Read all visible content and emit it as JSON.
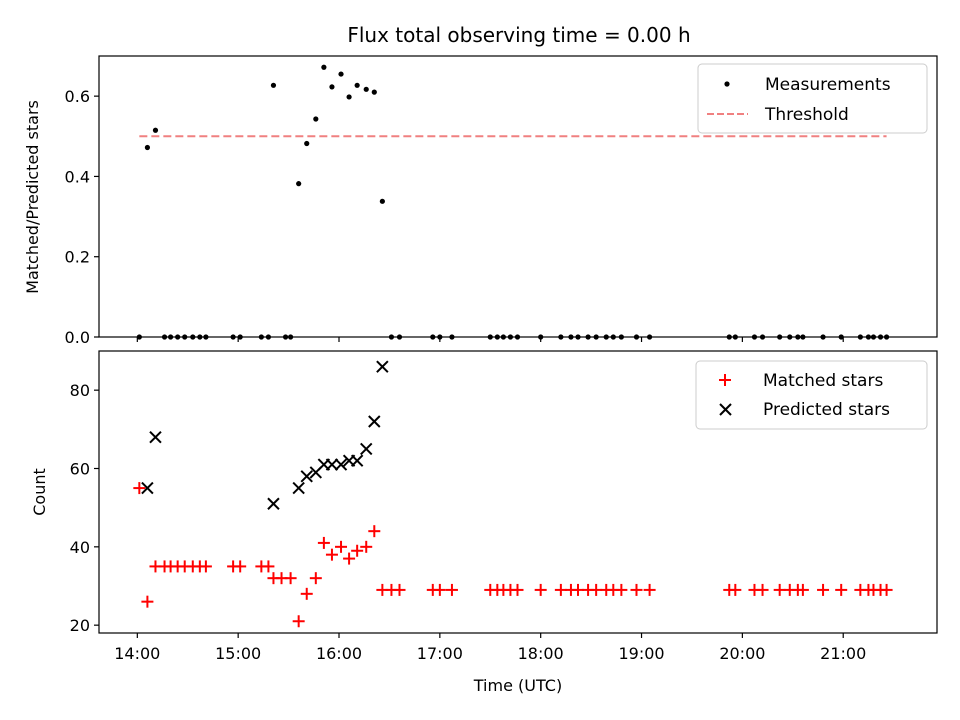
{
  "chart_data": [
    {
      "type": "scatter",
      "title": "Flux total observing time = 0.00 h",
      "xlabel": "",
      "ylabel": "Matched/Predicted stars",
      "xlim": [
        13.62,
        21.93
      ],
      "ylim": [
        0.0,
        0.7
      ],
      "yticks": [
        0.0,
        0.2,
        0.4,
        0.6
      ],
      "ytick_labels": [
        "0.0",
        "0.2",
        "0.4",
        "0.6"
      ],
      "legend": {
        "position": "top-right",
        "entries": [
          "Measurements",
          "Threshold"
        ]
      },
      "series": [
        {
          "name": "Measurements",
          "color": "#000000",
          "marker": "dot",
          "x": [
            14.02,
            14.1,
            14.18,
            14.27,
            14.33,
            14.4,
            14.47,
            14.55,
            14.62,
            14.68,
            14.95,
            15.02,
            15.23,
            15.3,
            15.35,
            15.47,
            15.52,
            15.6,
            15.68,
            15.77,
            15.85,
            15.93,
            16.02,
            16.1,
            16.18,
            16.27,
            16.35,
            16.43,
            16.52,
            16.6,
            16.93,
            17.0,
            17.12,
            17.5,
            17.57,
            17.63,
            17.7,
            17.77,
            18.0,
            18.2,
            18.3,
            18.37,
            18.47,
            18.55,
            18.65,
            18.72,
            18.8,
            18.95,
            19.08,
            19.87,
            19.93,
            20.12,
            20.2,
            20.37,
            20.47,
            20.55,
            20.6,
            20.8,
            20.98,
            21.17,
            21.25,
            21.3,
            21.37,
            21.43
          ],
          "y": [
            0,
            0.472,
            0.515,
            0,
            0,
            0,
            0,
            0,
            0,
            0,
            0,
            0,
            0,
            0,
            0.627,
            0,
            0,
            0.382,
            0.482,
            0.543,
            0.672,
            0.623,
            0.655,
            0.598,
            0.627,
            0.617,
            0.61,
            0.338,
            0,
            0,
            0,
            0,
            0,
            0,
            0,
            0,
            0,
            0,
            0,
            0,
            0,
            0,
            0,
            0,
            0,
            0,
            0,
            0,
            0,
            0,
            0,
            0,
            0,
            0,
            0,
            0,
            0,
            0,
            0,
            0,
            0,
            0,
            0,
            0
          ]
        },
        {
          "name": "Threshold",
          "color": "#f08080",
          "style": "dashed",
          "x": [
            14.02,
            21.43
          ],
          "y": [
            0.5,
            0.5
          ]
        }
      ]
    },
    {
      "type": "scatter",
      "title": "",
      "xlabel": "Time (UTC)",
      "ylabel": "Count",
      "xlim": [
        13.62,
        21.93
      ],
      "ylim": [
        18.0,
        90.0
      ],
      "yticks": [
        20,
        40,
        60,
        80
      ],
      "ytick_labels": [
        "20",
        "40",
        "60",
        "80"
      ],
      "xticks": [
        14,
        15,
        16,
        17,
        18,
        19,
        20,
        21
      ],
      "xtick_labels": [
        "14:00",
        "15:00",
        "16:00",
        "17:00",
        "18:00",
        "19:00",
        "20:00",
        "21:00"
      ],
      "legend": {
        "position": "top-right",
        "entries": [
          "Matched stars",
          "Predicted stars"
        ]
      },
      "series": [
        {
          "name": "Matched stars",
          "color": "#ff0000",
          "marker": "plus",
          "x": [
            14.02,
            14.1,
            14.18,
            14.27,
            14.33,
            14.4,
            14.47,
            14.55,
            14.62,
            14.68,
            14.95,
            15.02,
            15.23,
            15.3,
            15.35,
            15.43,
            15.52,
            15.6,
            15.68,
            15.77,
            15.85,
            15.93,
            16.02,
            16.1,
            16.18,
            16.27,
            16.35,
            16.43,
            16.52,
            16.6,
            16.93,
            17.0,
            17.12,
            17.5,
            17.57,
            17.63,
            17.7,
            17.77,
            18.0,
            18.2,
            18.3,
            18.37,
            18.47,
            18.55,
            18.65,
            18.72,
            18.8,
            18.95,
            19.08,
            19.87,
            19.93,
            20.12,
            20.2,
            20.37,
            20.47,
            20.55,
            20.6,
            20.8,
            20.98,
            21.17,
            21.25,
            21.3,
            21.37,
            21.43
          ],
          "y": [
            55,
            26,
            35,
            35,
            35,
            35,
            35,
            35,
            35,
            35,
            35,
            35,
            35,
            35,
            32,
            32,
            32,
            21,
            28,
            32,
            41,
            38,
            40,
            37,
            39,
            40,
            44,
            29,
            29,
            29,
            29,
            29,
            29,
            29,
            29,
            29,
            29,
            29,
            29,
            29,
            29,
            29,
            29,
            29,
            29,
            29,
            29,
            29,
            29,
            29,
            29,
            29,
            29,
            29,
            29,
            29,
            29,
            29,
            29,
            29,
            29,
            29,
            29,
            29
          ]
        },
        {
          "name": "Predicted stars",
          "color": "#000000",
          "marker": "x",
          "x": [
            14.1,
            14.18,
            15.35,
            15.6,
            15.68,
            15.77,
            15.85,
            15.93,
            16.02,
            16.1,
            16.18,
            16.27,
            16.35,
            16.43
          ],
          "y": [
            55,
            68,
            51,
            55,
            58,
            59,
            61,
            61,
            61,
            62,
            62,
            65,
            72,
            86
          ]
        }
      ]
    }
  ]
}
